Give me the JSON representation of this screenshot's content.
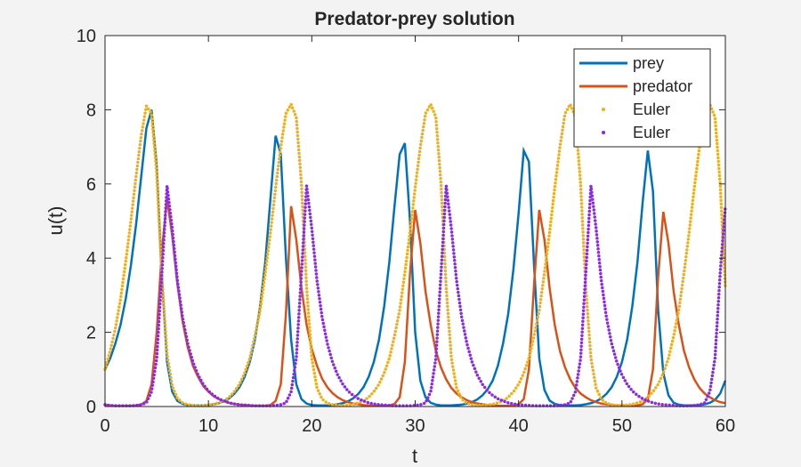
{
  "chart_data": {
    "type": "line",
    "title": "Predator-prey solution",
    "xlabel": "t",
    "ylabel": "u(t)",
    "xlim": [
      0,
      60
    ],
    "ylim": [
      0,
      10
    ],
    "xticks": [
      0,
      10,
      20,
      30,
      40,
      50,
      60
    ],
    "yticks": [
      0,
      2,
      4,
      6,
      8,
      10
    ],
    "grid": false,
    "legend": "northeast",
    "x": [
      0,
      0.5,
      1,
      1.5,
      2,
      2.5,
      3,
      3.5,
      4,
      4.5,
      5,
      5.5,
      6,
      6.5,
      7,
      7.5,
      8,
      8.5,
      9,
      9.5,
      10,
      10.5,
      11,
      11.5,
      12,
      12.5,
      13,
      13.5,
      14,
      14.5,
      15,
      15.5,
      16,
      16.5,
      17,
      17.5,
      18,
      18.5,
      19,
      19.5,
      20,
      20.5,
      21,
      21.5,
      22,
      22.5,
      23,
      23.5,
      24,
      24.5,
      25,
      25.5,
      26,
      26.5,
      27,
      27.5,
      28,
      28.5,
      29,
      29.5,
      30,
      30.5,
      31,
      31.5,
      32,
      32.5,
      33,
      33.5,
      34,
      34.5,
      35,
      35.5,
      36,
      36.5,
      37,
      37.5,
      38,
      38.5,
      39,
      39.5,
      40,
      40.5,
      41,
      41.5,
      42,
      42.5,
      43,
      43.5,
      44,
      44.5,
      45,
      45.5,
      46,
      46.5,
      47,
      47.5,
      48,
      48.5,
      49,
      49.5,
      50,
      50.5,
      51,
      51.5,
      52,
      52.5,
      53,
      53.5,
      54,
      54.5,
      55,
      55.5,
      56,
      56.5,
      57,
      57.5,
      58,
      58.5,
      59,
      59.5,
      60
    ],
    "series": [
      {
        "name": "prey",
        "color": "#0072bd",
        "style": "line",
        "values": [
          1,
          1.3,
          1.7,
          2.2,
          2.9,
          3.8,
          4.9,
          6.2,
          7.5,
          8.0,
          6.5,
          3.5,
          1.2,
          0.4,
          0.15,
          0.07,
          0.04,
          0.03,
          0.03,
          0.03,
          0.04,
          0.06,
          0.09,
          0.14,
          0.22,
          0.34,
          0.52,
          0.8,
          1.2,
          1.8,
          2.7,
          3.9,
          5.6,
          7.3,
          6.8,
          4.0,
          1.8,
          0.6,
          0.2,
          0.08,
          0.04,
          0.03,
          0.03,
          0.03,
          0.04,
          0.06,
          0.09,
          0.14,
          0.22,
          0.34,
          0.52,
          0.8,
          1.2,
          1.8,
          2.7,
          3.9,
          5.4,
          6.8,
          7.1,
          5.0,
          2.0,
          0.7,
          0.25,
          0.1,
          0.05,
          0.03,
          0.03,
          0.03,
          0.04,
          0.05,
          0.08,
          0.12,
          0.19,
          0.3,
          0.46,
          0.7,
          1.1,
          1.7,
          2.5,
          3.7,
          5.2,
          6.9,
          6.6,
          3.8,
          1.3,
          0.45,
          0.16,
          0.07,
          0.04,
          0.03,
          0.03,
          0.03,
          0.04,
          0.06,
          0.09,
          0.14,
          0.22,
          0.34,
          0.52,
          0.8,
          1.2,
          1.8,
          2.7,
          3.9,
          5.5,
          6.9,
          5.8,
          2.6,
          0.9,
          0.3,
          0.1,
          0.05,
          0.03,
          0.03,
          0.03,
          0.04,
          0.06,
          0.1,
          0.18,
          0.35,
          0.7
        ]
      },
      {
        "name": "predator",
        "color": "#d95319",
        "style": "line",
        "values": [
          0.05,
          0.03,
          0.02,
          0.02,
          0.02,
          0.02,
          0.03,
          0.05,
          0.15,
          0.6,
          2.0,
          4.2,
          5.6,
          4.6,
          3.3,
          2.3,
          1.6,
          1.1,
          0.8,
          0.55,
          0.4,
          0.28,
          0.2,
          0.14,
          0.1,
          0.07,
          0.05,
          0.04,
          0.03,
          0.02,
          0.02,
          0.02,
          0.04,
          0.15,
          0.6,
          2.5,
          5.4,
          4.5,
          3.2,
          2.2,
          1.55,
          1.1,
          0.75,
          0.52,
          0.36,
          0.25,
          0.17,
          0.12,
          0.08,
          0.06,
          0.04,
          0.03,
          0.02,
          0.02,
          0.02,
          0.03,
          0.07,
          0.25,
          1.2,
          3.6,
          5.3,
          4.4,
          3.1,
          2.2,
          1.5,
          1.05,
          0.73,
          0.5,
          0.35,
          0.25,
          0.17,
          0.12,
          0.08,
          0.06,
          0.04,
          0.03,
          0.02,
          0.02,
          0.02,
          0.03,
          0.06,
          0.2,
          1.0,
          3.3,
          5.3,
          4.5,
          3.2,
          2.2,
          1.5,
          1.05,
          0.73,
          0.5,
          0.35,
          0.25,
          0.17,
          0.12,
          0.08,
          0.06,
          0.04,
          0.03,
          0.03,
          0.02,
          0.02,
          0.03,
          0.06,
          0.2,
          1.0,
          3.5,
          5.25,
          4.4,
          3.1,
          2.2,
          1.5,
          1.05,
          0.73,
          0.5,
          0.35,
          0.25,
          0.17,
          0.12,
          0.09
        ]
      },
      {
        "name": "Euler",
        "color": "#edb120",
        "style": "dots",
        "values": [
          1.0,
          1.5,
          2.1,
          2.9,
          3.9,
          5.0,
          6.2,
          7.3,
          8.1,
          7.9,
          6.3,
          3.5,
          1.4,
          0.55,
          0.22,
          0.1,
          0.05,
          0.03,
          0.02,
          0.02,
          0.04,
          0.06,
          0.1,
          0.15,
          0.25,
          0.4,
          0.6,
          0.9,
          1.3,
          1.9,
          2.6,
          3.6,
          4.7,
          5.9,
          7.0,
          7.9,
          8.15,
          7.8,
          6.0,
          3.2,
          1.3,
          0.5,
          0.2,
          0.09,
          0.05,
          0.03,
          0.03,
          0.04,
          0.06,
          0.1,
          0.15,
          0.25,
          0.4,
          0.6,
          0.9,
          1.3,
          1.9,
          2.6,
          3.6,
          4.7,
          5.9,
          7.0,
          7.9,
          8.15,
          7.8,
          6.0,
          3.2,
          1.3,
          0.5,
          0.2,
          0.09,
          0.05,
          0.03,
          0.03,
          0.04,
          0.06,
          0.1,
          0.15,
          0.25,
          0.4,
          0.6,
          0.9,
          1.3,
          1.9,
          2.6,
          3.6,
          4.7,
          5.9,
          7.0,
          7.9,
          8.15,
          7.8,
          6.0,
          3.2,
          1.3,
          0.5,
          0.2,
          0.09,
          0.05,
          0.03,
          0.03,
          0.04,
          0.06,
          0.1,
          0.15,
          0.25,
          0.4,
          0.6,
          0.9,
          1.3,
          1.9,
          2.6,
          3.6,
          4.7,
          5.9,
          7.0,
          7.9,
          8.15,
          7.8,
          6.0,
          3.2
        ]
      },
      {
        "name": "Euler",
        "color": "#8a2be2",
        "style": "dots",
        "values": [
          0.05,
          0.03,
          0.02,
          0.02,
          0.02,
          0.02,
          0.03,
          0.05,
          0.1,
          0.4,
          1.3,
          3.6,
          5.95,
          4.8,
          3.4,
          2.4,
          1.7,
          1.2,
          0.85,
          0.6,
          0.42,
          0.3,
          0.21,
          0.15,
          0.1,
          0.07,
          0.05,
          0.04,
          0.03,
          0.02,
          0.02,
          0.02,
          0.02,
          0.03,
          0.05,
          0.1,
          0.4,
          1.3,
          3.6,
          5.95,
          4.8,
          3.4,
          2.4,
          1.7,
          1.2,
          0.85,
          0.6,
          0.42,
          0.3,
          0.21,
          0.15,
          0.1,
          0.07,
          0.05,
          0.04,
          0.03,
          0.02,
          0.02,
          0.02,
          0.02,
          0.03,
          0.05,
          0.1,
          0.4,
          1.3,
          3.6,
          5.95,
          4.8,
          3.4,
          2.4,
          1.7,
          1.2,
          0.85,
          0.6,
          0.42,
          0.3,
          0.21,
          0.15,
          0.1,
          0.07,
          0.05,
          0.04,
          0.03,
          0.02,
          0.02,
          0.02,
          0.02,
          0.02,
          0.03,
          0.05,
          0.1,
          0.4,
          1.3,
          3.6,
          5.95,
          4.8,
          3.4,
          2.4,
          1.7,
          1.2,
          0.85,
          0.6,
          0.42,
          0.3,
          0.21,
          0.15,
          0.1,
          0.07,
          0.05,
          0.04,
          0.03,
          0.02,
          0.02,
          0.02,
          0.03,
          0.05,
          0.1,
          0.4,
          1.3,
          3.6,
          5.4
        ]
      }
    ]
  }
}
